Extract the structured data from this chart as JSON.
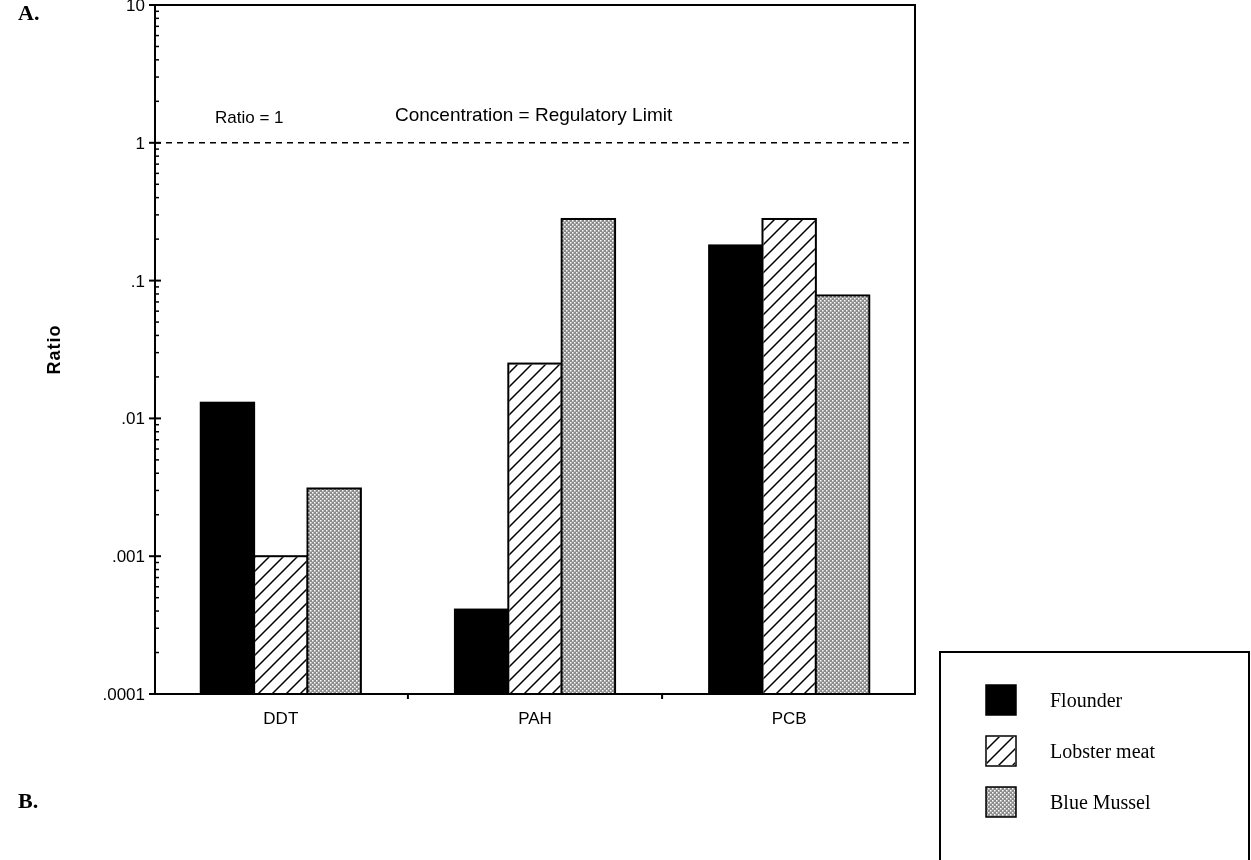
{
  "chart_data": {
    "type": "bar",
    "ylabel": "Ratio",
    "log": "y",
    "legend": "bottom right",
    "grid": false,
    "categories": [
      "DDT",
      "PAH",
      "PCB"
    ],
    "series": [
      {
        "name": "Flounder",
        "color": "#000000",
        "values": [
          0.013,
          0.00041,
          0.18
        ]
      },
      {
        "name": "Lobster meat",
        "color": "#ffffff",
        "values": [
          0.001,
          0.025,
          0.28
        ]
      },
      {
        "name": "Blue Mussel",
        "color": "#8c8c8c",
        "values": [
          0.0031,
          0.28,
          0.078
        ]
      }
    ],
    "ylim": [
      0.0001,
      10
    ],
    "yticks": [
      {
        "value": 0.0001,
        "label": ".0001"
      },
      {
        "value": 0.001,
        "label": ".001"
      },
      {
        "value": 0.01,
        "label": ".01"
      },
      {
        "value": 0.1,
        "label": ".1"
      },
      1,
      10
    ],
    "ref_lines": [
      {
        "axis": "y",
        "value": 1,
        "label": "Ratio = 1",
        "line_style": "dashed",
        "color": "#000000"
      }
    ],
    "annotations": [
      "Concentration = Regulatory Limit",
      "A.",
      "B."
    ]
  }
}
